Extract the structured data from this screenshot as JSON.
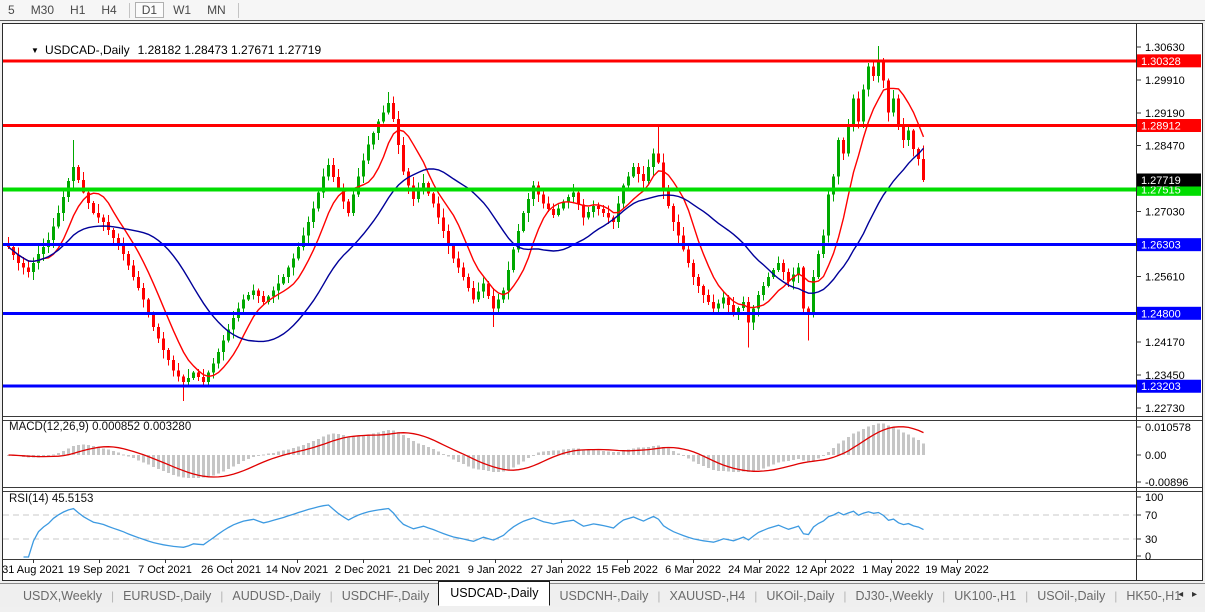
{
  "toolbar": {
    "timeframes": [
      {
        "label": "5",
        "active": false
      },
      {
        "label": "M30",
        "active": false
      },
      {
        "label": "H1",
        "active": false
      },
      {
        "label": "H4",
        "active": false
      },
      {
        "label": "D1",
        "active": true
      },
      {
        "label": "W1",
        "active": false
      },
      {
        "label": "MN",
        "active": false
      }
    ]
  },
  "chart_header": {
    "dropdown_icon": "▼",
    "symbol_label": "USDCAD-,Daily",
    "quotes_text": "1.28182 1.28473 1.27671 1.27719"
  },
  "indicator_labels": {
    "macd": "MACD(12,26,9) 0.000852 0.003280",
    "rsi": "RSI(14) 45.5153"
  },
  "chart_data": {
    "type": "candlestick",
    "symbol": "USDCAD-",
    "timeframe": "Daily",
    "ohlc_last": {
      "open": 1.28182,
      "high": 1.28473,
      "low": 1.27671,
      "close": 1.27719
    },
    "open_first": 1.263,
    "closes": [
      1.2625,
      1.2608,
      1.259,
      1.258,
      1.257,
      1.259,
      1.261,
      1.2625,
      1.264,
      1.267,
      1.27,
      1.2735,
      1.277,
      1.28,
      1.2772,
      1.2745,
      1.2722,
      1.27,
      1.269,
      1.268,
      1.2662,
      1.2645,
      1.2628,
      1.261,
      1.2585,
      1.256,
      1.2535,
      1.251,
      1.248,
      1.245,
      1.2425,
      1.24,
      1.2378,
      1.2355,
      1.2342,
      1.233,
      1.2338,
      1.235,
      1.234,
      1.233,
      1.235,
      1.237,
      1.2395,
      1.242,
      1.2445,
      1.247,
      1.249,
      1.251,
      1.252,
      1.253,
      1.2518,
      1.2505,
      1.2517,
      1.253,
      1.2545,
      1.256,
      1.258,
      1.26,
      1.2625,
      1.265,
      1.268,
      1.271,
      1.2745,
      1.278,
      1.2805,
      1.2778,
      1.275,
      1.2725,
      1.27,
      1.274,
      1.278,
      1.2815,
      1.285,
      1.2875,
      1.29,
      1.292,
      1.294,
      1.2905,
      1.2848,
      1.279,
      1.276,
      1.273,
      1.2748,
      1.2765,
      1.2742,
      1.272,
      1.269,
      1.266,
      1.263,
      1.26,
      1.258,
      1.256,
      1.2535,
      1.251,
      1.2528,
      1.2545,
      1.2518,
      1.249,
      1.251,
      1.253,
      1.2575,
      1.262,
      1.266,
      1.27,
      1.273,
      1.276,
      1.274,
      1.272,
      1.2708,
      1.2695,
      1.271,
      1.2725,
      1.2735,
      1.2745,
      1.2718,
      1.269,
      1.2702,
      1.2715,
      1.2708,
      1.27,
      1.269,
      1.268,
      1.272,
      1.276,
      1.278,
      1.28,
      1.2785,
      1.277,
      1.28,
      1.283,
      1.281,
      1.275,
      1.2715,
      1.268,
      1.265,
      1.262,
      1.259,
      1.256,
      1.254,
      1.252,
      1.2505,
      1.249,
      1.2502,
      1.2515,
      1.2498,
      1.248,
      1.2492,
      1.2505,
      1.246,
      1.249,
      1.252,
      1.254,
      1.256,
      1.2575,
      1.259,
      1.257,
      1.255,
      1.2565,
      1.258,
      1.249,
      1.248,
      1.256,
      1.261,
      1.265,
      1.274,
      1.278,
      1.286,
      1.283,
      1.289,
      1.295,
      1.29,
      1.297,
      1.302,
      1.3,
      1.303,
      1.299,
      1.292,
      1.295,
      1.289,
      1.286,
      1.288,
      1.284,
      1.28182,
      1.27719
    ],
    "wick_overrides": {
      "13": {
        "high": 1.286
      },
      "35": {
        "low": 1.2288
      },
      "76": {
        "high": 1.2965
      },
      "97": {
        "low": 1.245
      },
      "130": {
        "high": 1.2895
      },
      "148": {
        "low": 1.2405
      },
      "160": {
        "low": 1.242
      },
      "174": {
        "high": 1.3065
      }
    },
    "levels": [
      {
        "price": 1.30328,
        "color": "#ff0000",
        "badge": "1.30328",
        "width": 3
      },
      {
        "price": 1.28912,
        "color": "#ff0000",
        "badge": "1.28912",
        "width": 3
      },
      {
        "price": 1.27515,
        "color": "#00dd00",
        "badge": "1.27515",
        "width": 4
      },
      {
        "price": 1.26303,
        "color": "#0000ff",
        "badge": "1.26303",
        "width": 3
      },
      {
        "price": 1.248,
        "color": "#0000ff",
        "badge": "1.24800",
        "width": 3
      },
      {
        "price": 1.23203,
        "color": "#0000ff",
        "badge": "1.23203",
        "width": 3
      }
    ],
    "current_price": {
      "value": 1.27719,
      "badge": "1.27719",
      "color": "#000000"
    },
    "y_ticks": [
      "1.30630",
      "1.29910",
      "1.29190",
      "1.28470",
      "1.27030",
      "1.25610",
      "1.24170",
      "1.23450",
      "1.22730"
    ],
    "x_labels": [
      "31 Aug 2021",
      "19 Sep 2021",
      "7 Oct 2021",
      "26 Oct 2021",
      "14 Nov 2021",
      "2 Dec 2021",
      "21 Dec 2021",
      "9 Jan 2022",
      "27 Jan 2022",
      "15 Feb 2022",
      "6 Mar 2022",
      "24 Mar 2022",
      "12 Apr 2022",
      "1 May 2022",
      "19 May 2022"
    ],
    "ma_fast_period": 8,
    "ma_slow_period": 24,
    "macd": {
      "params": [
        12,
        26,
        9
      ],
      "value_main": 0.000852,
      "value_signal": 0.00328,
      "axis_ticks": [
        "0.010578",
        "0.00",
        "-0.00896"
      ]
    },
    "rsi": {
      "period": 14,
      "value": 45.5153,
      "axis_ticks": [
        "100",
        "70",
        "30",
        "0"
      ],
      "levels": [
        70,
        30
      ]
    }
  },
  "tabs": {
    "items": [
      {
        "label": "USDX,Weekly",
        "active": false
      },
      {
        "label": "EURUSD-,Daily",
        "active": false
      },
      {
        "label": "AUDUSD-,Daily",
        "active": false
      },
      {
        "label": "USDCHF-,Daily",
        "active": false
      },
      {
        "label": "USDCAD-,Daily",
        "active": true
      },
      {
        "label": "USDCNH-,Daily",
        "active": false
      },
      {
        "label": "XAUUSD-,H4",
        "active": false
      },
      {
        "label": "UKOil-,Daily",
        "active": false
      },
      {
        "label": "DJ30-,Weekly",
        "active": false
      },
      {
        "label": "UK100-,H1",
        "active": false
      },
      {
        "label": "USOil-,Daily",
        "active": false
      },
      {
        "label": "HK50-,H1",
        "active": false
      }
    ],
    "scroll_left": "◂",
    "scroll_right": "▸"
  },
  "colors": {
    "up": "#00a800",
    "down": "#ff0000",
    "ma_fast": "#ff0000",
    "ma_slow": "#000099",
    "macd_hist": "#c6c6c6",
    "macd_signal": "#e00000",
    "rsi_line": "#3d9ae1",
    "dashed_level": "#c8c8c8",
    "axis_line": "#2b2b2b"
  }
}
